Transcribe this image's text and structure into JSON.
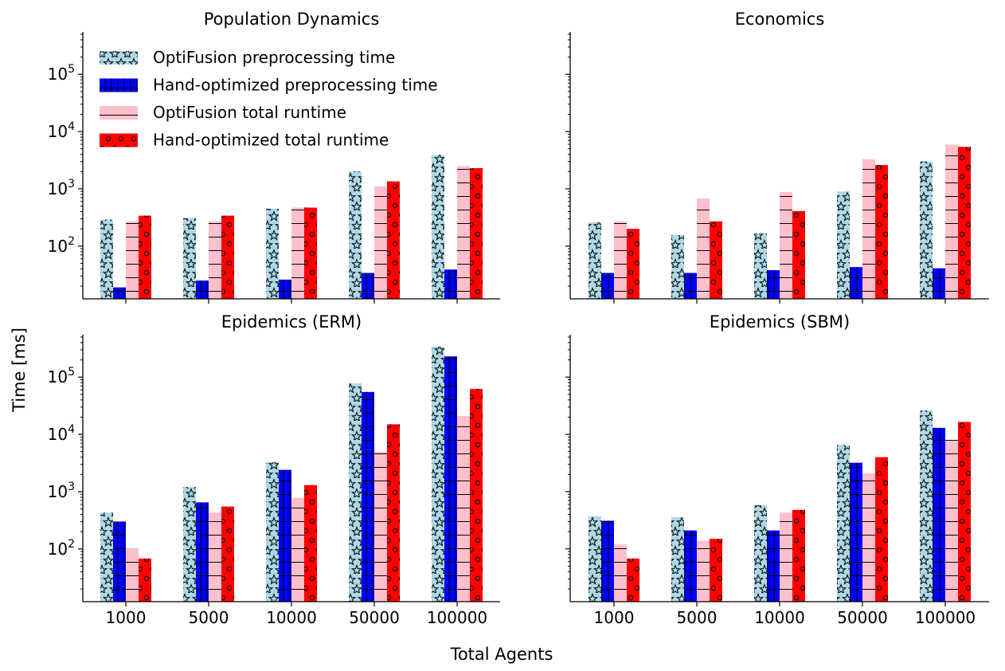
{
  "figure": {
    "ylabel": "Time [ms]",
    "xlabel": "Total Agents"
  },
  "legend": {
    "position": "upper-left of first panel",
    "entries": [
      {
        "label": "OptiFusion preprocessing time",
        "color": "#add8e6",
        "hatch": "stars"
      },
      {
        "label": "Hand-optimized preprocessing time",
        "color": "#0000ff",
        "hatch": "grid"
      },
      {
        "label": "OptiFusion total runtime",
        "color": "#ffc0cb",
        "hatch": "horizontal-lines"
      },
      {
        "label": "Hand-optimized total runtime",
        "color": "#ff0000",
        "hatch": "circles"
      }
    ]
  },
  "chart_data": [
    {
      "type": "bar",
      "title": "Population Dynamics",
      "yscale": "log",
      "ylim": [
        12,
        550000
      ],
      "yticks": [
        {
          "value": 100,
          "label": "10^2"
        },
        {
          "value": 1000,
          "label": "10^3"
        },
        {
          "value": 10000,
          "label": "10^4"
        },
        {
          "value": 100000,
          "label": "10^5"
        }
      ],
      "show_yticklabels": true,
      "categories": [
        "1000",
        "5000",
        "10000",
        "50000",
        "100000"
      ],
      "series": [
        {
          "name": "OptiFusion preprocessing time",
          "values": [
            290,
            310,
            450,
            2000,
            3900
          ]
        },
        {
          "name": "Hand-optimized preprocessing time",
          "values": [
            19,
            25,
            26,
            34,
            39
          ]
        },
        {
          "name": "OptiFusion total runtime",
          "values": [
            270,
            270,
            470,
            1100,
            2500
          ]
        },
        {
          "name": "Hand-optimized total runtime",
          "values": [
            340,
            340,
            470,
            1350,
            2300
          ]
        }
      ]
    },
    {
      "type": "bar",
      "title": "Economics",
      "yscale": "log",
      "ylim": [
        12,
        550000
      ],
      "yticks": [
        {
          "value": 100,
          "label": "10^2"
        },
        {
          "value": 1000,
          "label": "10^3"
        },
        {
          "value": 10000,
          "label": "10^4"
        },
        {
          "value": 100000,
          "label": "10^5"
        }
      ],
      "show_yticklabels": false,
      "categories": [
        "1000",
        "5000",
        "10000",
        "50000",
        "100000"
      ],
      "series": [
        {
          "name": "OptiFusion preprocessing time",
          "values": [
            260,
            155,
            165,
            900,
            3000
          ]
        },
        {
          "name": "Hand-optimized preprocessing time",
          "values": [
            34,
            34,
            38,
            43,
            41
          ]
        },
        {
          "name": "OptiFusion total runtime",
          "values": [
            270,
            680,
            880,
            3300,
            5900
          ]
        },
        {
          "name": "Hand-optimized total runtime",
          "values": [
            200,
            270,
            410,
            2600,
            5400
          ]
        }
      ]
    },
    {
      "type": "bar",
      "title": "Epidemics (ERM)",
      "yscale": "log",
      "ylim": [
        12,
        550000
      ],
      "yticks": [
        {
          "value": 100,
          "label": "10^2"
        },
        {
          "value": 1000,
          "label": "10^3"
        },
        {
          "value": 10000,
          "label": "10^4"
        },
        {
          "value": 100000,
          "label": "10^5"
        }
      ],
      "show_yticklabels": true,
      "categories": [
        "1000",
        "5000",
        "10000",
        "50000",
        "100000"
      ],
      "series": [
        {
          "name": "OptiFusion preprocessing time",
          "values": [
            430,
            1200,
            3300,
            78000,
            340000
          ]
        },
        {
          "name": "Hand-optimized preprocessing time",
          "values": [
            300,
            650,
            2400,
            55000,
            230000
          ]
        },
        {
          "name": "OptiFusion total runtime",
          "values": [
            100,
            430,
            780,
            5000,
            21000
          ]
        },
        {
          "name": "Hand-optimized total runtime",
          "values": [
            68,
            550,
            1300,
            15000,
            62000
          ]
        }
      ]
    },
    {
      "type": "bar",
      "title": "Epidemics (SBM)",
      "yscale": "log",
      "ylim": [
        12,
        550000
      ],
      "yticks": [
        {
          "value": 100,
          "label": "10^2"
        },
        {
          "value": 1000,
          "label": "10^3"
        },
        {
          "value": 10000,
          "label": "10^4"
        },
        {
          "value": 100000,
          "label": "10^5"
        }
      ],
      "show_yticklabels": false,
      "categories": [
        "1000",
        "5000",
        "10000",
        "50000",
        "100000"
      ],
      "series": [
        {
          "name": "OptiFusion preprocessing time",
          "values": [
            370,
            360,
            580,
            6500,
            26000
          ]
        },
        {
          "name": "Hand-optimized preprocessing time",
          "values": [
            310,
            210,
            210,
            3200,
            13000
          ]
        },
        {
          "name": "OptiFusion total runtime",
          "values": [
            120,
            140,
            430,
            2100,
            8000
          ]
        },
        {
          "name": "Hand-optimized total runtime",
          "values": [
            68,
            150,
            480,
            4000,
            16500
          ]
        }
      ]
    }
  ]
}
